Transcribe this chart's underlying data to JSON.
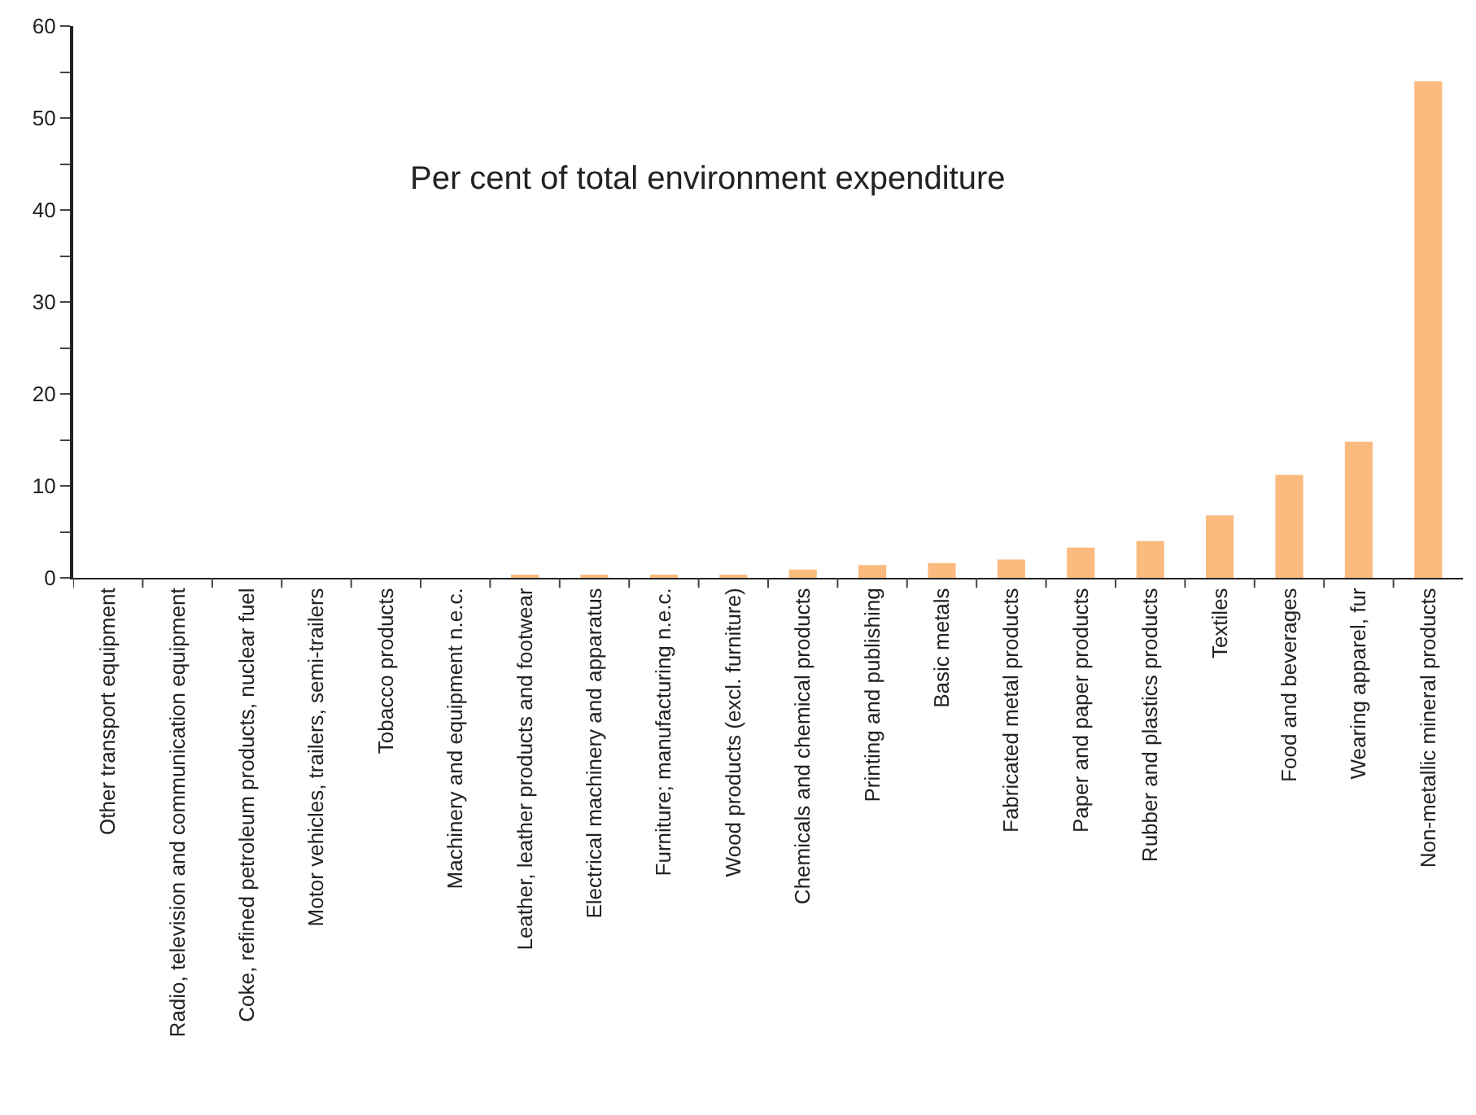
{
  "chart_data": {
    "type": "bar",
    "categories": [
      "Other transport equipment",
      "Radio, television and communication equipment",
      "Coke, refined petroleum products, nuclear fuel",
      "Motor vehicles, trailers, semi-trailers",
      "Tobacco products",
      "Machinery and equipment n.e.c.",
      "Leather, leather products and footwear",
      "Electrical machinery and apparatus",
      "Furniture; manufacturing n.e.c.",
      "Wood products (excl. furniture)",
      "Chemicals and chemical products",
      "Printing and publishing",
      "Basic metals",
      "Fabricated metal products",
      "Paper and paper products",
      "Rubber and plastics products",
      "Textiles",
      "Food and beverages",
      "Wearing apparel, fur",
      "Non-metallic mineral products"
    ],
    "values": [
      0,
      0,
      0,
      0,
      0,
      0,
      0.2,
      0.2,
      0.3,
      0.3,
      0.9,
      1.4,
      1.6,
      2.0,
      3.3,
      4.0,
      6.8,
      11.2,
      14.8,
      54.0
    ],
    "color": "#fbbb7f",
    "ylim": [
      0,
      60
    ],
    "yticks": [
      0,
      {
        "value": 5,
        "label": null
      },
      10,
      {
        "value": 15,
        "label": null
      },
      20,
      {
        "value": 25,
        "label": null
      },
      30,
      {
        "value": 35,
        "label": null
      },
      40,
      {
        "value": 45,
        "label": null
      },
      50,
      {
        "value": 55,
        "label": null
      },
      60
    ],
    "grid": false,
    "legend": false,
    "annotations": [
      "Per cent of total environment expenditure"
    ]
  }
}
